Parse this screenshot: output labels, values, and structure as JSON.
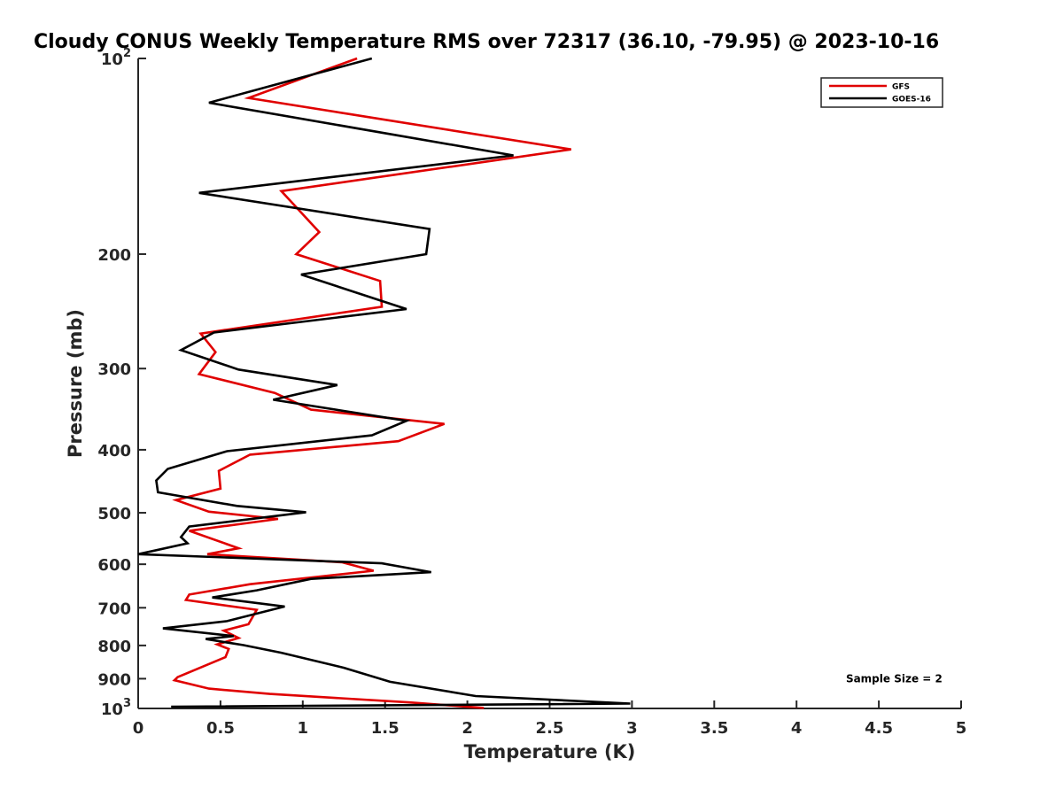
{
  "chart_data": {
    "type": "line",
    "title": "Cloudy CONUS Weekly Temperature RMS over 72317 (36.10, -79.95) @ 2023-10-16",
    "xlabel": "Temperature (K)",
    "ylabel": "Pressure (mb)",
    "xlim": [
      0,
      5
    ],
    "ylim": [
      100,
      1000
    ],
    "y_scale": "log",
    "y_reversed": true,
    "grid": false,
    "legend_position": "top-right",
    "x_ticks": [
      "0",
      "0.5",
      "1",
      "1.5",
      "2",
      "2.5",
      "3",
      "3.5",
      "4",
      "4.5",
      "5"
    ],
    "y_ticks": [
      {
        "value": 100,
        "base": "10",
        "exp": "2"
      },
      {
        "value": 200,
        "label": "200"
      },
      {
        "value": 300,
        "label": "300"
      },
      {
        "value": 400,
        "label": "400"
      },
      {
        "value": 500,
        "label": "500"
      },
      {
        "value": 600,
        "label": "600"
      },
      {
        "value": 700,
        "label": "700"
      },
      {
        "value": 800,
        "label": "800"
      },
      {
        "value": 900,
        "label": "900"
      },
      {
        "value": 1000,
        "base": "10",
        "exp": "3"
      }
    ],
    "series": [
      {
        "name": "GFS",
        "color": "#e00000",
        "points": [
          [
            1.33,
            100
          ],
          [
            0.67,
            115
          ],
          [
            2.63,
            138
          ],
          [
            0.87,
            160
          ],
          [
            1.1,
            185
          ],
          [
            0.96,
            200
          ],
          [
            1.47,
            220
          ],
          [
            1.48,
            241
          ],
          [
            0.38,
            265
          ],
          [
            0.47,
            283
          ],
          [
            0.37,
            306
          ],
          [
            0.83,
            327
          ],
          [
            1.05,
            347
          ],
          [
            1.86,
            365
          ],
          [
            1.58,
            388
          ],
          [
            0.68,
            407
          ],
          [
            0.49,
            431
          ],
          [
            0.5,
            459
          ],
          [
            0.23,
            478
          ],
          [
            0.43,
            498
          ],
          [
            0.85,
            511
          ],
          [
            0.31,
            533
          ],
          [
            0.61,
            567
          ],
          [
            0.42,
            579
          ],
          [
            1.24,
            596
          ],
          [
            1.43,
            614
          ],
          [
            0.68,
            644
          ],
          [
            0.31,
            668
          ],
          [
            0.29,
            681
          ],
          [
            0.72,
            705
          ],
          [
            0.67,
            742
          ],
          [
            0.52,
            759
          ],
          [
            0.61,
            779
          ],
          [
            0.48,
            797
          ],
          [
            0.55,
            810
          ],
          [
            0.53,
            834
          ],
          [
            0.24,
            895
          ],
          [
            0.22,
            905
          ],
          [
            0.43,
            932
          ],
          [
            0.8,
            950
          ],
          [
            1.65,
            979
          ],
          [
            2.1,
            998
          ]
        ]
      },
      {
        "name": "GOES-16",
        "color": "#000000",
        "points": [
          [
            1.42,
            100
          ],
          [
            0.43,
            117
          ],
          [
            2.28,
            141
          ],
          [
            0.37,
            161
          ],
          [
            1.77,
            183
          ],
          [
            1.75,
            200
          ],
          [
            0.99,
            215
          ],
          [
            1.63,
            243
          ],
          [
            0.46,
            264
          ],
          [
            0.26,
            281
          ],
          [
            0.61,
            301
          ],
          [
            1.21,
            318
          ],
          [
            0.82,
            335
          ],
          [
            1.63,
            361
          ],
          [
            1.42,
            380
          ],
          [
            0.54,
            402
          ],
          [
            0.18,
            428
          ],
          [
            0.11,
            446
          ],
          [
            0.12,
            465
          ],
          [
            0.6,
            488
          ],
          [
            1.02,
            499
          ],
          [
            0.31,
            525
          ],
          [
            0.26,
            545
          ],
          [
            0.3,
            557
          ],
          [
            0.0,
            579
          ],
          [
            1.48,
            598
          ],
          [
            1.78,
            617
          ],
          [
            1.05,
            632
          ],
          [
            0.72,
            658
          ],
          [
            0.45,
            675
          ],
          [
            0.89,
            697
          ],
          [
            0.54,
            734
          ],
          [
            0.15,
            753
          ],
          [
            0.58,
            774
          ],
          [
            0.41,
            782
          ],
          [
            0.64,
            799
          ],
          [
            0.87,
            821
          ],
          [
            1.25,
            866
          ],
          [
            1.53,
            910
          ],
          [
            2.05,
            957
          ],
          [
            2.99,
            983
          ],
          [
            0.2,
            994
          ]
        ]
      }
    ],
    "annotations": [
      {
        "text": "Sample Size = 2",
        "x": 4.3,
        "y": 900
      }
    ]
  }
}
